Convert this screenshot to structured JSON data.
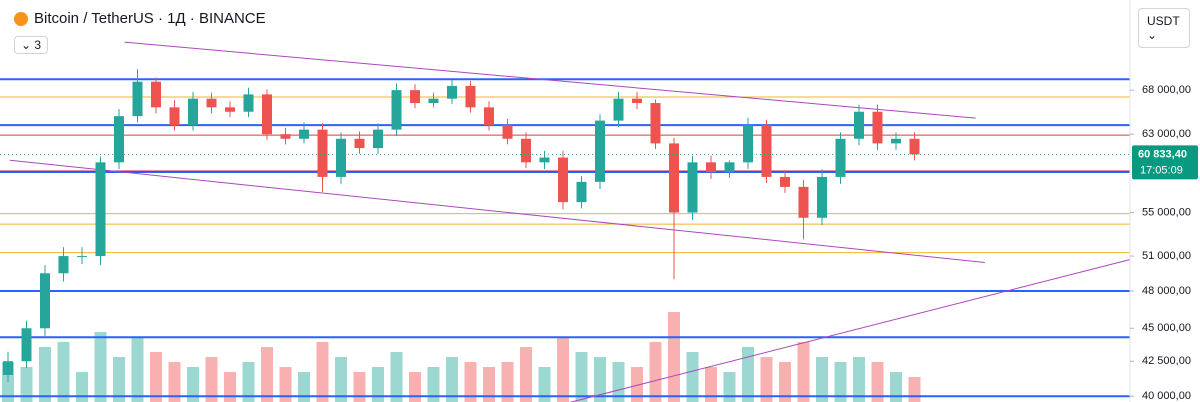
{
  "chart_data": {
    "type": "candlestick",
    "title": "Bitcoin / TetherUS · 1Д · BINANCE",
    "indicator_count": "3",
    "currency": "USDT",
    "log_scale": true,
    "ylim": [
      39600,
      79500
    ],
    "yticks": [
      {
        "value": 68000,
        "label": "68 000,00"
      },
      {
        "value": 63000,
        "label": "63 000,00"
      },
      {
        "value": 55000,
        "label": "55 000,00"
      },
      {
        "value": 51000,
        "label": "51 000,00"
      },
      {
        "value": 48000,
        "label": "48 000,00"
      },
      {
        "value": 45000,
        "label": "45 000,00"
      },
      {
        "value": 42500,
        "label": "42 500,00"
      },
      {
        "value": 40000,
        "label": "40 000,00"
      }
    ],
    "last_price": {
      "value": 60833.4,
      "label": "60 833,40",
      "countdown": "17:05:09"
    },
    "up_color": "#26a69a",
    "down_color": "#ef5350",
    "open": [
      41500,
      42500,
      45000,
      49500,
      51000,
      51000,
      60000,
      65000,
      69000,
      66000,
      64000,
      67000,
      66000,
      65500,
      67500,
      63000,
      62500,
      63500,
      58500,
      62500,
      61500,
      63500,
      68000,
      66500,
      67000,
      68500,
      66000,
      64000,
      62500,
      60000,
      60500,
      56000,
      58000,
      64500,
      67000,
      66500,
      62000,
      55000,
      60000,
      59000,
      60000,
      64000,
      58500,
      57500,
      54500,
      58500,
      62500,
      65500,
      62000,
      62500
    ],
    "high": [
      43200,
      45600,
      50200,
      51800,
      51800,
      60600,
      65800,
      70500,
      69500,
      66800,
      67800,
      67700,
      66700,
      68300,
      68100,
      63700,
      64300,
      64200,
      63200,
      63300,
      64200,
      68800,
      68700,
      67700,
      69200,
      69100,
      66700,
      64700,
      63200,
      61200,
      61200,
      58600,
      65200,
      67800,
      67800,
      66900,
      62600,
      60700,
      60700,
      60200,
      64800,
      64600,
      59200,
      58200,
      59300,
      63200,
      66300,
      66300,
      63200,
      63200
    ],
    "low": [
      41000,
      42000,
      44400,
      48800,
      50300,
      50200,
      59300,
      64300,
      65300,
      63400,
      63400,
      65300,
      64900,
      64900,
      62400,
      61900,
      62000,
      57000,
      57800,
      60900,
      60900,
      62800,
      65900,
      66000,
      66400,
      65400,
      63400,
      61900,
      59400,
      59300,
      55300,
      55400,
      57300,
      63800,
      65800,
      61400,
      49000,
      54300,
      58300,
      58400,
      59300,
      57900,
      56900,
      52500,
      53800,
      57800,
      61800,
      61300,
      61300,
      60200
    ],
    "close": [
      42500,
      45000,
      49500,
      51000,
      51000,
      60000,
      65000,
      69000,
      66000,
      64000,
      67000,
      66000,
      65500,
      67500,
      63000,
      62500,
      63500,
      58500,
      62500,
      61500,
      63500,
      68000,
      66500,
      67000,
      68500,
      66000,
      64000,
      62500,
      60000,
      60500,
      56000,
      58000,
      64500,
      67000,
      66500,
      62000,
      55000,
      60000,
      59000,
      60000,
      64000,
      58500,
      57500,
      54500,
      58500,
      62500,
      65500,
      62000,
      62500,
      60833.4
    ],
    "volume": [
      40,
      35,
      55,
      60,
      30,
      70,
      45,
      65,
      50,
      40,
      35,
      45,
      30,
      40,
      55,
      35,
      30,
      60,
      45,
      30,
      35,
      50,
      30,
      35,
      45,
      40,
      35,
      40,
      55,
      35,
      65,
      50,
      45,
      40,
      35,
      60,
      90,
      50,
      35,
      30,
      55,
      45,
      40,
      60,
      45,
      40,
      45,
      40,
      30,
      25
    ],
    "levels": [
      {
        "value": 69300,
        "color": "#2962ff"
      },
      {
        "value": 64000,
        "color": "#2962ff"
      },
      {
        "value": 59000,
        "color": "#2962ff"
      },
      {
        "value": 48000,
        "color": "#2962ff"
      },
      {
        "value": 44300,
        "color": "#2962ff"
      },
      {
        "value": 40000,
        "color": "#2962ff"
      },
      {
        "value": 67200,
        "color": "#f0b429"
      },
      {
        "value": 62900,
        "color": "#e53935"
      },
      {
        "value": 54900,
        "color": "#f0b429"
      },
      {
        "value": 53900,
        "color": "#f0b429"
      },
      {
        "value": 51300,
        "color": "#f0b429"
      },
      {
        "value": 59100,
        "color": "#c2185b"
      }
    ],
    "trendlines": [
      {
        "from": [
          6.3,
          73900
        ],
        "to": [
          52.3,
          64780
        ],
        "color": "#ab47bc"
      },
      {
        "from": [
          0.1,
          60220
        ],
        "to": [
          52.8,
          50430
        ],
        "color": "#ab47bc"
      },
      {
        "from": [
          30.4,
          39580
        ],
        "to": [
          60.9,
          50800
        ],
        "color": "#ab47bc"
      }
    ]
  }
}
